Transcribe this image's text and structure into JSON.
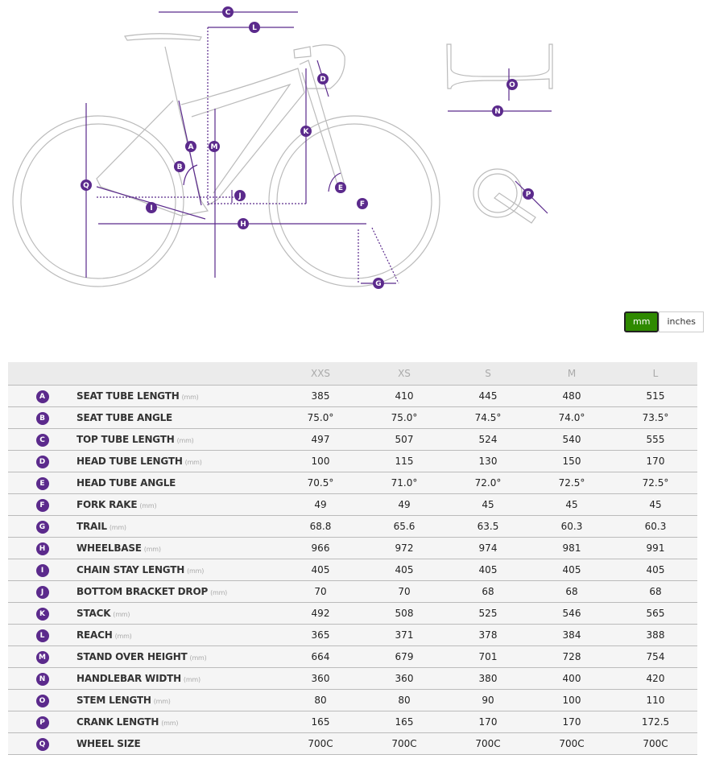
{
  "diagram": {
    "labels": [
      "A",
      "B",
      "C",
      "D",
      "E",
      "F",
      "G",
      "H",
      "I",
      "J",
      "K",
      "L",
      "M",
      "N",
      "O",
      "P",
      "Q"
    ],
    "accent": "#5b2a8c"
  },
  "units": {
    "mm": "mm",
    "inches": "inches",
    "active": "mm",
    "active_color": "#2f8a00"
  },
  "table": {
    "sizes": [
      "XXS",
      "XS",
      "S",
      "M",
      "L"
    ],
    "rows": [
      {
        "letter": "A",
        "label": "SEAT TUBE LENGTH",
        "unit": "(mm)",
        "values": [
          "385",
          "410",
          "445",
          "480",
          "515"
        ]
      },
      {
        "letter": "B",
        "label": "SEAT TUBE ANGLE",
        "unit": "",
        "values": [
          "75.0°",
          "75.0°",
          "74.5°",
          "74.0°",
          "73.5°"
        ]
      },
      {
        "letter": "C",
        "label": "TOP TUBE LENGTH",
        "unit": "(mm)",
        "values": [
          "497",
          "507",
          "524",
          "540",
          "555"
        ]
      },
      {
        "letter": "D",
        "label": "HEAD TUBE LENGTH",
        "unit": "(mm)",
        "values": [
          "100",
          "115",
          "130",
          "150",
          "170"
        ]
      },
      {
        "letter": "E",
        "label": "HEAD TUBE ANGLE",
        "unit": "",
        "values": [
          "70.5°",
          "71.0°",
          "72.0°",
          "72.5°",
          "72.5°"
        ]
      },
      {
        "letter": "F",
        "label": "FORK RAKE",
        "unit": "(mm)",
        "values": [
          "49",
          "49",
          "45",
          "45",
          "45"
        ]
      },
      {
        "letter": "G",
        "label": "TRAIL",
        "unit": "(mm)",
        "values": [
          "68.8",
          "65.6",
          "63.5",
          "60.3",
          "60.3"
        ]
      },
      {
        "letter": "H",
        "label": "WHEELBASE",
        "unit": "(mm)",
        "values": [
          "966",
          "972",
          "974",
          "981",
          "991"
        ]
      },
      {
        "letter": "I",
        "label": "CHAIN STAY LENGTH",
        "unit": "(mm)",
        "values": [
          "405",
          "405",
          "405",
          "405",
          "405"
        ]
      },
      {
        "letter": "J",
        "label": "BOTTOM BRACKET DROP",
        "unit": "(mm)",
        "values": [
          "70",
          "70",
          "68",
          "68",
          "68"
        ]
      },
      {
        "letter": "K",
        "label": "STACK",
        "unit": "(mm)",
        "values": [
          "492",
          "508",
          "525",
          "546",
          "565"
        ]
      },
      {
        "letter": "L",
        "label": "REACH",
        "unit": "(mm)",
        "values": [
          "365",
          "371",
          "378",
          "384",
          "388"
        ]
      },
      {
        "letter": "M",
        "label": "STAND OVER HEIGHT",
        "unit": "(mm)",
        "values": [
          "664",
          "679",
          "701",
          "728",
          "754"
        ]
      },
      {
        "letter": "N",
        "label": "HANDLEBAR WIDTH",
        "unit": "(mm)",
        "values": [
          "360",
          "360",
          "380",
          "400",
          "420"
        ]
      },
      {
        "letter": "O",
        "label": "STEM LENGTH",
        "unit": "(mm)",
        "values": [
          "80",
          "80",
          "90",
          "100",
          "110"
        ]
      },
      {
        "letter": "P",
        "label": "CRANK LENGTH",
        "unit": "(mm)",
        "values": [
          "165",
          "165",
          "170",
          "170",
          "172.5"
        ]
      },
      {
        "letter": "Q",
        "label": "WHEEL SIZE",
        "unit": "",
        "values": [
          "700C",
          "700C",
          "700C",
          "700C",
          "700C"
        ]
      }
    ]
  }
}
